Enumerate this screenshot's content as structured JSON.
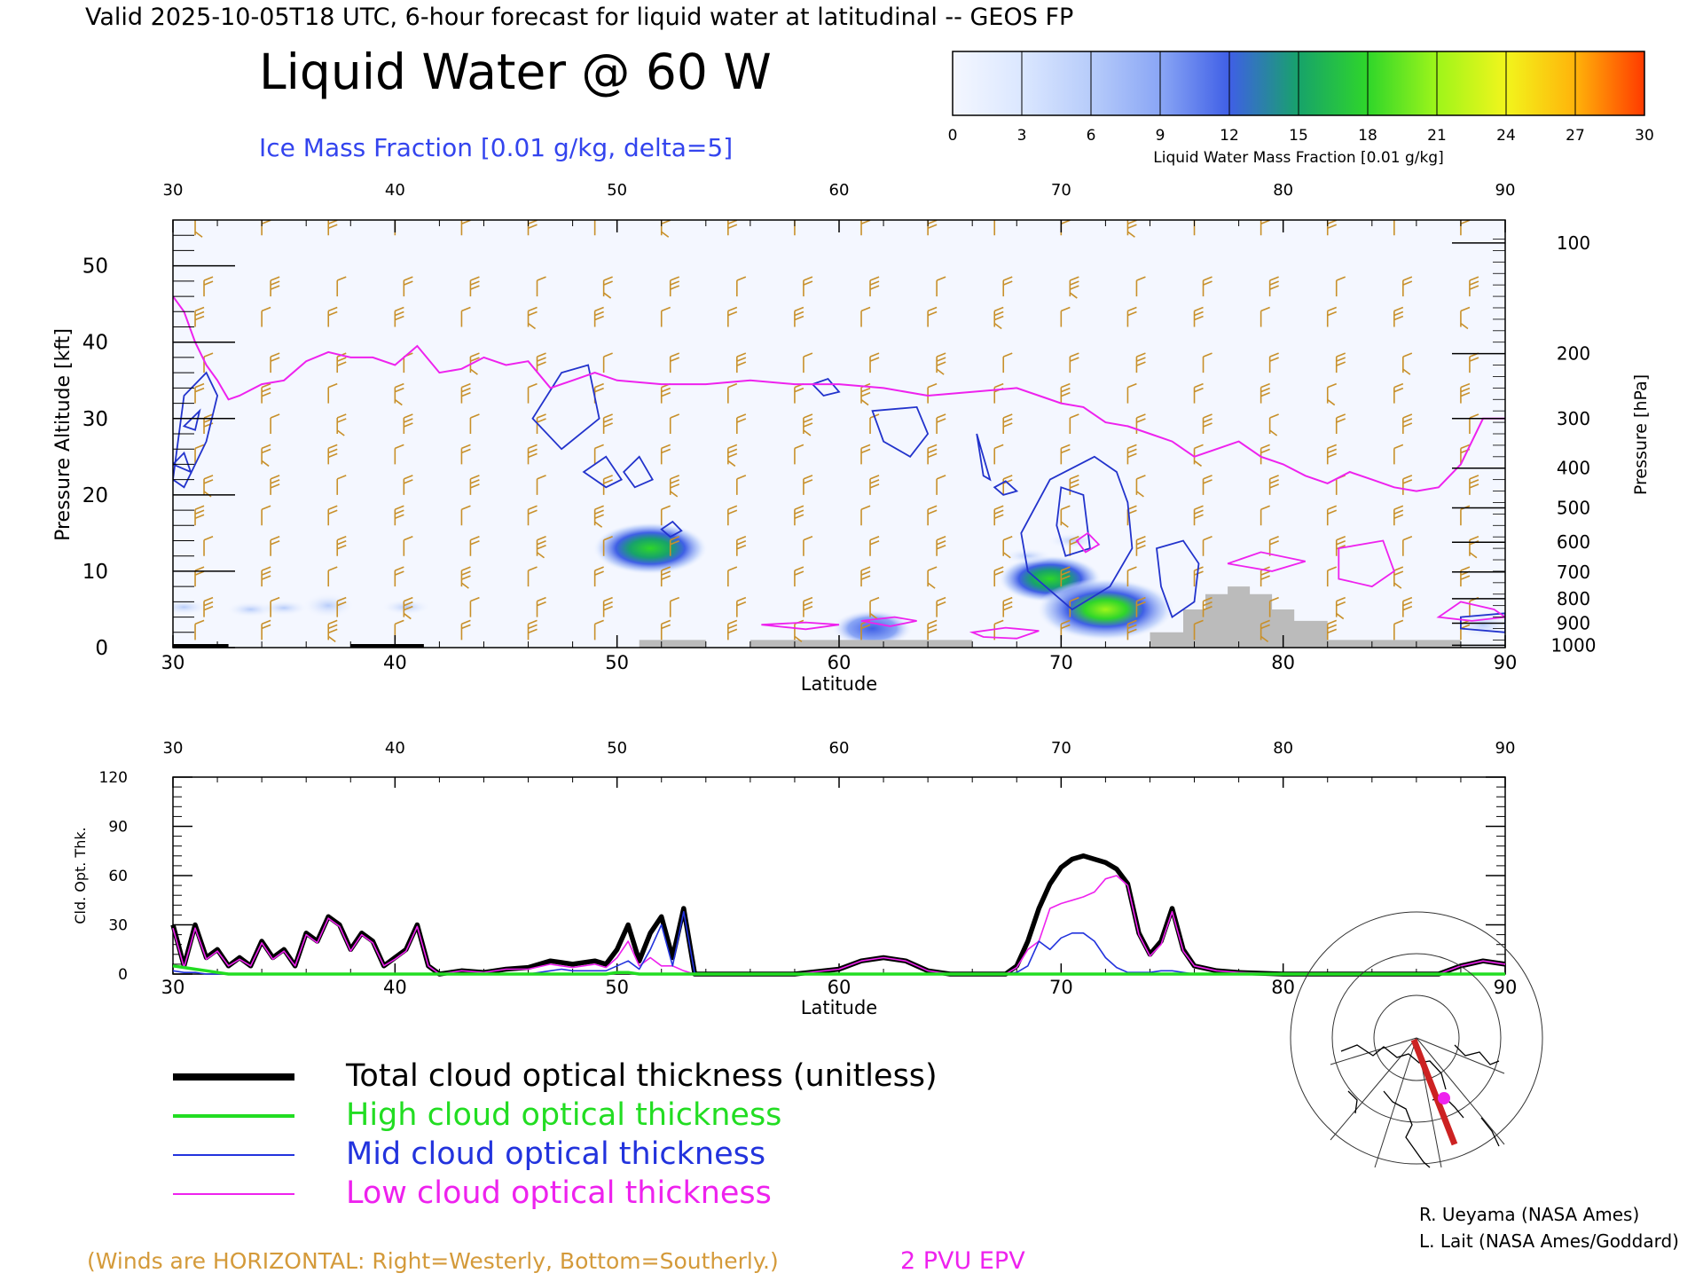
{
  "header": {
    "valid_line": "Valid 2025-10-05T18 UTC, 6-hour forecast for liquid water at latitudinal -- GEOS FP",
    "title": "Liquid Water @ 60 W",
    "subtitle": "Ice Mass Fraction [0.01 g/kg, delta=5]"
  },
  "colorbar": {
    "ticks": [
      "0",
      "3",
      "6",
      "9",
      "12",
      "15",
      "18",
      "21",
      "24",
      "27",
      "30"
    ],
    "label": "Liquid Water Mass Fraction [0.01 g/kg]",
    "colors": [
      "#f4f7ff",
      "#dbe7ff",
      "#b7ccfa",
      "#8aa6f5",
      "#3f5fe6",
      "#17a36a",
      "#2fd62a",
      "#9ef51a",
      "#f2f51c",
      "#ffb30a",
      "#ff3a00"
    ]
  },
  "chart_data": [
    {
      "type": "heatmap",
      "title": "Liquid Water @ 60 W",
      "xlabel": "Latitude",
      "ylabel": "Pressure Altitude [kft]",
      "ylabel_right": "Pressure [hPa]",
      "xlim": [
        30,
        90
      ],
      "ylim": [
        0,
        56
      ],
      "x_ticks": [
        "30",
        "40",
        "50",
        "60",
        "70",
        "80",
        "90"
      ],
      "y_ticks": [
        "0",
        "10",
        "20",
        "30",
        "40",
        "50"
      ],
      "pressure_ticks": [
        "100",
        "200",
        "300",
        "400",
        "500",
        "600",
        "700",
        "800",
        "900",
        "1000"
      ],
      "pressure_tick_kft": [
        53,
        38.5,
        30,
        23.5,
        18.3,
        13.8,
        9.9,
        6.4,
        3.2,
        0.3
      ],
      "epv_2pvu_line": {
        "lat": [
          30,
          30.5,
          31,
          31.5,
          32,
          32.5,
          33,
          34,
          35,
          36,
          37,
          38,
          39,
          40,
          41,
          42,
          43,
          44,
          45,
          46,
          47,
          48,
          49,
          50,
          52,
          54,
          56,
          58,
          60,
          62,
          64,
          66,
          68,
          69,
          70,
          71,
          72,
          73,
          74,
          75,
          76,
          77,
          78,
          79,
          80,
          81,
          82,
          83,
          84,
          85,
          86,
          87,
          88,
          89,
          90
        ],
        "kft": [
          46,
          44,
          40,
          37,
          35,
          32.5,
          33,
          34.5,
          35,
          37.5,
          38.7,
          38,
          38,
          37,
          39.5,
          36,
          36.5,
          38,
          37,
          37.5,
          34,
          35,
          36,
          35,
          34.5,
          34.5,
          35,
          34.5,
          34.5,
          34,
          33,
          33.5,
          34,
          33,
          32,
          31.5,
          29.5,
          29,
          28,
          27,
          25,
          26,
          27,
          25,
          24,
          22.5,
          21.5,
          23,
          22,
          21,
          20.5,
          21,
          24,
          30,
          30
        ]
      },
      "liquid_water_clouds": [
        {
          "lat": 51.5,
          "kft": 13,
          "peak": 14
        },
        {
          "lat": 69.5,
          "kft": 9,
          "peak": 12
        },
        {
          "lat": 72,
          "kft": 5,
          "peak": 18
        },
        {
          "lat": 61.5,
          "kft": 2.5,
          "peak": 8
        },
        {
          "lat": 37,
          "kft": 5.5,
          "peak": 3
        },
        {
          "lat": 89,
          "kft": 3,
          "peak": 4
        }
      ]
    },
    {
      "type": "line",
      "xlabel": "Latitude",
      "ylabel": "Cld. Opt. Thk.",
      "xlim": [
        30,
        90
      ],
      "ylim": [
        0,
        120
      ],
      "x_ticks": [
        "30",
        "40",
        "50",
        "60",
        "70",
        "80",
        "90"
      ],
      "y_ticks": [
        "0",
        "30",
        "60",
        "90",
        "120"
      ],
      "x": [
        30,
        30.5,
        31,
        31.5,
        32,
        32.5,
        33,
        33.5,
        34,
        34.5,
        35,
        35.5,
        36,
        36.5,
        37,
        37.5,
        38,
        38.5,
        39,
        39.5,
        40,
        40.5,
        41,
        41.5,
        42,
        43,
        44,
        45,
        46,
        47,
        47.5,
        48,
        49,
        49.5,
        50,
        50.5,
        51,
        51.5,
        52,
        52.5,
        53,
        53.5,
        54,
        56,
        58,
        60,
        61,
        62,
        63,
        64,
        65,
        66,
        67,
        67.5,
        68,
        68.5,
        69,
        69.5,
        70,
        70.5,
        71,
        71.5,
        72,
        72.5,
        73,
        73.5,
        74,
        74.5,
        75,
        75.5,
        76,
        77,
        78,
        80,
        82,
        84,
        86,
        87,
        88,
        89,
        90
      ],
      "series": [
        {
          "name": "Total cloud optical thickness (unitless)",
          "values": [
            30,
            5,
            30,
            10,
            15,
            5,
            10,
            5,
            20,
            10,
            15,
            5,
            25,
            20,
            35,
            30,
            15,
            25,
            20,
            5,
            10,
            15,
            30,
            5,
            0,
            2,
            1,
            3,
            4,
            8,
            7,
            6,
            8,
            6,
            15,
            30,
            8,
            25,
            35,
            10,
            40,
            0,
            0,
            0,
            0,
            3,
            8,
            10,
            8,
            2,
            0,
            0,
            0,
            0,
            5,
            20,
            40,
            55,
            65,
            70,
            72,
            70,
            68,
            64,
            55,
            25,
            12,
            20,
            40,
            15,
            5,
            2,
            1,
            0,
            0,
            0,
            0,
            0,
            5,
            8,
            6
          ]
        },
        {
          "name": "High cloud optical thickness",
          "values": [
            5,
            4,
            3,
            2,
            1,
            0,
            0,
            0,
            0,
            0,
            0,
            0,
            0,
            0,
            0,
            0,
            0,
            0,
            0,
            0,
            0,
            0,
            0,
            0,
            0,
            0,
            0,
            0,
            0,
            0,
            0,
            0,
            0,
            0,
            1,
            1,
            0,
            0,
            0,
            0,
            0,
            0,
            0,
            0,
            0,
            0,
            0,
            0,
            0,
            0,
            0,
            0,
            0,
            0,
            0,
            0,
            0,
            0,
            0,
            0,
            0,
            0,
            0,
            0,
            0,
            0,
            0,
            0,
            0,
            0,
            0,
            0,
            0,
            0,
            0,
            0,
            0,
            0,
            0,
            0,
            0
          ]
        },
        {
          "name": "Mid cloud optical thickness",
          "values": [
            2,
            1,
            1,
            0,
            0,
            0,
            0,
            0,
            0,
            0,
            0,
            0,
            0,
            0,
            0,
            0,
            0,
            0,
            0,
            0,
            0,
            0,
            0,
            0,
            0,
            0,
            0,
            0,
            0,
            2,
            3,
            2,
            2,
            2,
            5,
            8,
            3,
            15,
            30,
            5,
            38,
            0,
            0,
            0,
            0,
            0,
            0,
            0,
            0,
            0,
            0,
            0,
            0,
            0,
            1,
            5,
            20,
            15,
            22,
            25,
            25,
            20,
            10,
            4,
            1,
            1,
            1,
            2,
            2,
            1,
            0,
            0,
            0,
            0,
            0,
            0,
            0,
            0,
            0,
            0,
            0
          ]
        },
        {
          "name": "Low cloud optical thickness",
          "values": [
            28,
            4,
            28,
            9,
            14,
            5,
            9,
            5,
            19,
            9,
            14,
            5,
            24,
            19,
            34,
            29,
            14,
            24,
            19,
            5,
            9,
            14,
            29,
            5,
            0,
            2,
            1,
            3,
            3,
            6,
            5,
            4,
            6,
            4,
            10,
            20,
            5,
            10,
            5,
            5,
            2,
            0,
            0,
            0,
            0,
            3,
            8,
            10,
            8,
            2,
            0,
            0,
            0,
            0,
            4,
            15,
            20,
            40,
            43,
            45,
            47,
            50,
            58,
            60,
            54,
            24,
            11,
            18,
            38,
            14,
            5,
            2,
            1,
            0,
            0,
            0,
            0,
            0,
            5,
            8,
            6
          ]
        }
      ]
    }
  ],
  "legend": {
    "items": [
      {
        "label": "Total cloud optical thickness (unitless)",
        "color": "#000000"
      },
      {
        "label": "High cloud optical thickness",
        "color": "#22dd22"
      },
      {
        "label": "Mid cloud optical thickness",
        "color": "#2233dd"
      },
      {
        "label": "Low cloud optical thickness",
        "color": "#ee22ee"
      }
    ]
  },
  "footer": {
    "winds_note": "(Winds are HORIZONTAL: Right=Westerly, Bottom=Southerly.)",
    "epv_label": "2 PVU EPV",
    "credit_1": "R. Ueyama (NASA Ames)",
    "credit_2": "L. Lait (NASA Ames/Goddard)"
  }
}
